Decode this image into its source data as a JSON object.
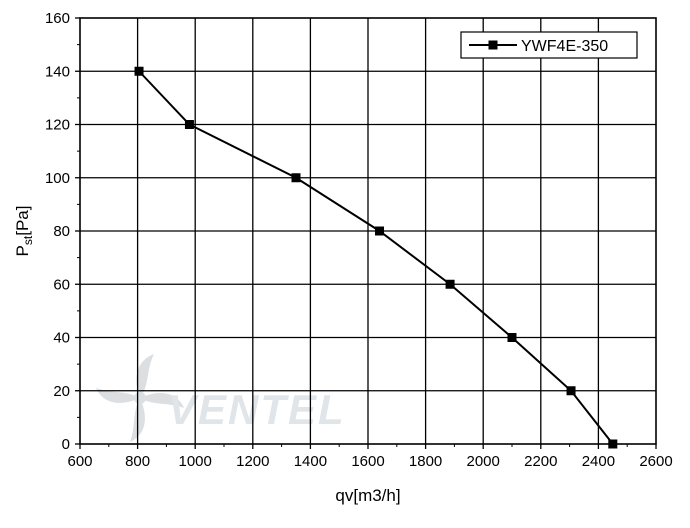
{
  "chart_data": {
    "type": "line",
    "title": "",
    "xlabel": "qv[m3/h]",
    "ylabel_main": "P",
    "ylabel_sub": "st",
    "ylabel_suffix": "[Pa]",
    "xlim": [
      600,
      2600
    ],
    "ylim": [
      0,
      160
    ],
    "xticks": [
      600,
      800,
      1000,
      1200,
      1400,
      1600,
      1800,
      2000,
      2200,
      2400,
      2600
    ],
    "yticks": [
      0,
      20,
      40,
      60,
      80,
      100,
      120,
      140,
      160
    ],
    "grid": true,
    "legend_position": "top-right",
    "series": [
      {
        "name": "YWF4E-350",
        "marker": "square",
        "color": "#000000",
        "x": [
          805,
          980,
          1350,
          1640,
          1885,
          2100,
          2305,
          2450
        ],
        "y": [
          140,
          120,
          100,
          80,
          60,
          40,
          20,
          0
        ]
      }
    ],
    "watermark_text": "VENTEL"
  }
}
